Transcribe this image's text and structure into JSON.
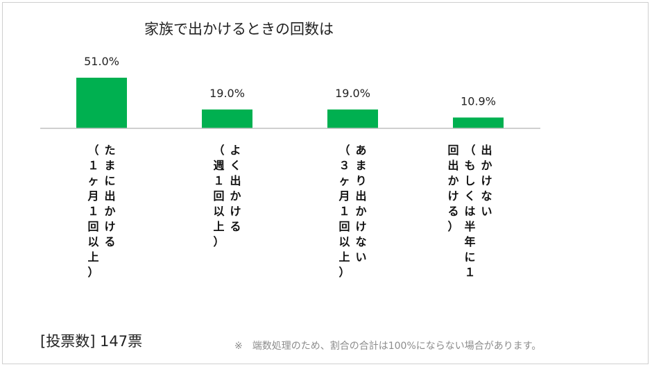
{
  "chart_data": {
    "type": "bar",
    "title": "家族で出かけるときの回数は",
    "categories": [
      {
        "label": "たまに出かける",
        "sub": "（１ヶ月１回以上）"
      },
      {
        "label": "よく出かける",
        "sub": "（週１回以上）"
      },
      {
        "label": "あまり出かけない",
        "sub": "（３ヶ月１回以上）"
      },
      {
        "label": "出かけない",
        "sub": "（もしくは半年に１回出かける）"
      }
    ],
    "values": [
      51.0,
      19.0,
      19.0,
      10.9
    ],
    "value_labels": [
      "51.0%",
      "19.0%",
      "19.0%",
      "10.9%"
    ],
    "unit": "%",
    "bar_color": "#00b050",
    "ylim": [
      0,
      51.0
    ],
    "grid": false,
    "legend": "none"
  },
  "footer": {
    "vote_count": "[投票数] 147票",
    "note": "※　端数処理のため、割合の合計は100%にならない場合があります。"
  }
}
